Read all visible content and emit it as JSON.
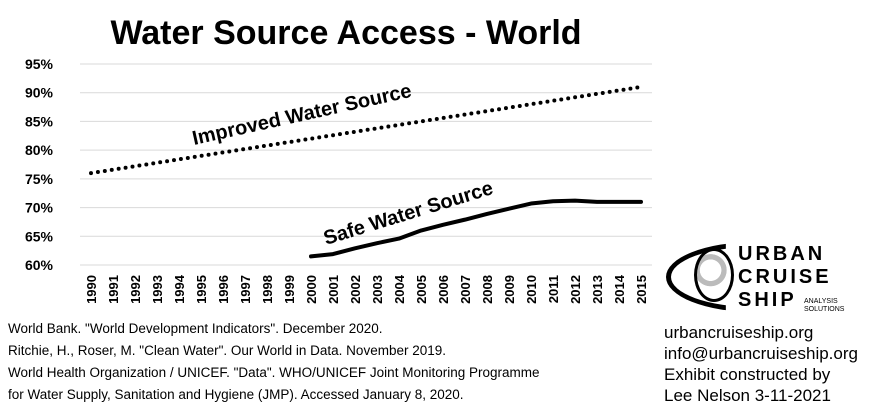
{
  "chart_data": {
    "type": "line",
    "title": "Water Source Access - World",
    "xlabel": "",
    "ylabel": "",
    "x": [
      1990,
      1991,
      1992,
      1993,
      1994,
      1995,
      1996,
      1997,
      1998,
      1999,
      2000,
      2001,
      2002,
      2003,
      2004,
      2005,
      2006,
      2007,
      2008,
      2009,
      2010,
      2011,
      2012,
      2013,
      2014,
      2015
    ],
    "x_tick_labels": [
      "1990",
      "1991",
      "1992",
      "1993",
      "1994",
      "1995",
      "1996",
      "1997",
      "1998",
      "1999",
      "2000",
      "2001",
      "2002",
      "2003",
      "2004",
      "2005",
      "2006",
      "2007",
      "2008",
      "2009",
      "2010",
      "2011",
      "2012",
      "2013",
      "2014",
      "2015"
    ],
    "ylim": [
      60,
      95
    ],
    "y_ticks": [
      60,
      65,
      70,
      75,
      80,
      85,
      90,
      95
    ],
    "y_tick_labels": [
      "60%",
      "65%",
      "70%",
      "75%",
      "80%",
      "85%",
      "90%",
      "95%"
    ],
    "grid": "horizontal",
    "series": [
      {
        "name": "Improved Water Source",
        "style": "dotted",
        "color": "#000000",
        "values": [
          76.0,
          76.6,
          77.2,
          77.8,
          78.4,
          79.0,
          79.6,
          80.2,
          80.8,
          81.4,
          82.0,
          82.6,
          83.2,
          83.8,
          84.4,
          85.0,
          85.6,
          86.2,
          86.8,
          87.4,
          88.0,
          88.6,
          89.2,
          89.8,
          90.4,
          91.0
        ]
      },
      {
        "name": "Safe Water Source",
        "style": "solid",
        "color": "#000000",
        "values": [
          null,
          null,
          null,
          null,
          null,
          null,
          null,
          null,
          null,
          null,
          61.5,
          61.9,
          62.9,
          63.8,
          64.6,
          66.0,
          67.0,
          67.9,
          68.9,
          69.8,
          70.7,
          71.1,
          71.2,
          71.0,
          71.0,
          71.0
        ]
      }
    ]
  },
  "sources": [
    "World Bank. \"World Development Indicators\". December 2020.",
    "Ritchie, H., Roser, M. \"Clean Water\". Our World in Data. November 2019.",
    "World Health Organization / UNICEF. \"Data\". WHO/UNICEF Joint Monitoring Programme",
    "for Water Supply, Sanitation and Hygiene (JMP). Accessed January 8, 2020."
  ],
  "logo": {
    "word1": "URBAN",
    "word2": "CRUISE",
    "word3": "SHIP",
    "sub1": "ANALYSIS",
    "sub2": "SOLUTIONS"
  },
  "contact": {
    "website": "urbancruiseship.org",
    "email": "info@urbancruiseship.org",
    "exhibit_line1": "Exhibit constructed by",
    "exhibit_line2": "Lee Nelson 3-11-2021"
  }
}
